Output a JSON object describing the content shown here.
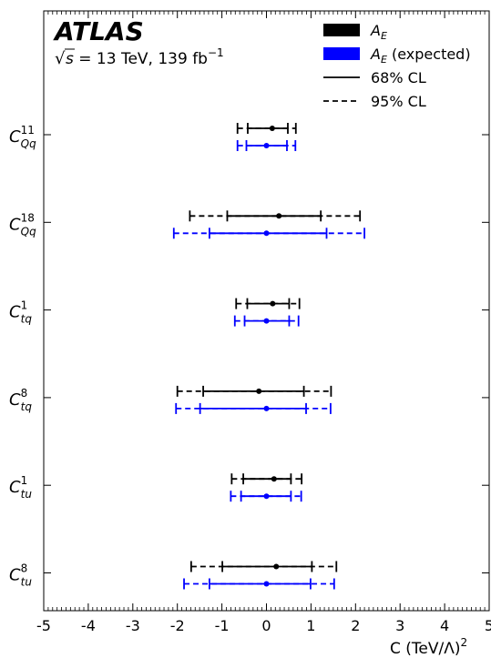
{
  "chart_data": {
    "type": "errorbar",
    "title": "ATLAS",
    "subtitle": {
      "root": "s",
      "rest": " = 13 TeV, 139 fb",
      "sup": "−1"
    },
    "xlabel": {
      "main": "C (TeV/Λ)",
      "sup": "2"
    },
    "xlim": [
      -5,
      5
    ],
    "xticks": [
      "-5",
      "-4",
      "-3",
      "-2",
      "-1",
      "0",
      "1",
      "2",
      "3",
      "4",
      "5"
    ],
    "legend_position": "top-right",
    "legend": [
      {
        "label": "A",
        "sub": "E",
        "suffix": "",
        "kind": "patch",
        "color": "#000000"
      },
      {
        "label": "A",
        "sub": "E",
        "suffix": " (expected)",
        "kind": "patch",
        "color": "#0000ff"
      },
      {
        "label": "68% CL",
        "sub": "",
        "suffix": "",
        "kind": "solid",
        "color": "#000000"
      },
      {
        "label": "95% CL",
        "sub": "",
        "suffix": "",
        "kind": "dashed",
        "color": "#000000"
      }
    ],
    "series": [
      {
        "name": "A_E",
        "color": "#000000"
      },
      {
        "name": "A_E (expected)",
        "color": "#0000ff"
      }
    ],
    "categories": [
      {
        "base": "C",
        "sup": "11",
        "sub": "Qq",
        "observed": {
          "center": 0.13,
          "cl68": [
            -0.42,
            0.48
          ],
          "cl95": [
            -0.65,
            0.66
          ]
        },
        "expected": {
          "center": 0.0,
          "cl68": [
            -0.45,
            0.46
          ],
          "cl95": [
            -0.65,
            0.65
          ]
        }
      },
      {
        "base": "C",
        "sup": "18",
        "sub": "Qq",
        "observed": {
          "center": 0.28,
          "cl68": [
            -0.88,
            1.22
          ],
          "cl95": [
            -1.72,
            2.1
          ]
        },
        "expected": {
          "center": 0.0,
          "cl68": [
            -1.28,
            1.35
          ],
          "cl95": [
            -2.08,
            2.2
          ]
        }
      },
      {
        "base": "C",
        "sup": "1",
        "sub": "tq",
        "observed": {
          "center": 0.14,
          "cl68": [
            -0.43,
            0.51
          ],
          "cl95": [
            -0.68,
            0.74
          ]
        },
        "expected": {
          "center": 0.0,
          "cl68": [
            -0.49,
            0.51
          ],
          "cl95": [
            -0.71,
            0.72
          ]
        }
      },
      {
        "base": "C",
        "sup": "8",
        "sub": "tq",
        "observed": {
          "center": -0.17,
          "cl68": [
            -1.42,
            0.84
          ],
          "cl95": [
            -2.0,
            1.45
          ]
        },
        "expected": {
          "center": 0.0,
          "cl68": [
            -1.49,
            0.89
          ],
          "cl95": [
            -2.03,
            1.44
          ]
        }
      },
      {
        "base": "C",
        "sup": "1",
        "sub": "tu",
        "observed": {
          "center": 0.17,
          "cl68": [
            -0.52,
            0.55
          ],
          "cl95": [
            -0.78,
            0.79
          ]
        },
        "expected": {
          "center": 0.0,
          "cl68": [
            -0.57,
            0.55
          ],
          "cl95": [
            -0.8,
            0.78
          ]
        }
      },
      {
        "base": "C",
        "sup": "8",
        "sub": "tu",
        "observed": {
          "center": 0.22,
          "cl68": [
            -0.99,
            1.02
          ],
          "cl95": [
            -1.69,
            1.57
          ]
        },
        "expected": {
          "center": 0.0,
          "cl68": [
            -1.28,
            0.99
          ],
          "cl95": [
            -1.85,
            1.52
          ]
        }
      }
    ]
  }
}
